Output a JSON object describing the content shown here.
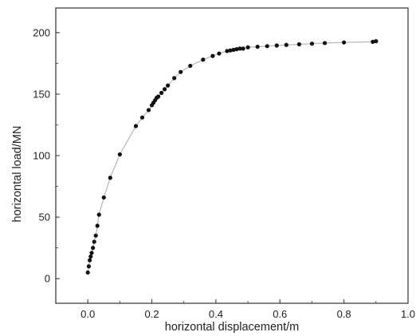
{
  "chart_data": {
    "type": "scatter",
    "title": "",
    "xlabel": "horizontal displacement/m",
    "ylabel": "horizontal load/MN",
    "xlim": [
      -0.1,
      1.0
    ],
    "ylim": [
      -20,
      220
    ],
    "xticks": [
      "0.0",
      "0.2",
      "0.4",
      "0.6",
      "0.8",
      "1.0"
    ],
    "yticks": [
      "0",
      "50",
      "100",
      "150",
      "200"
    ],
    "grid": false,
    "legend": "none",
    "series": [
      {
        "line_color": "#b5b5b5",
        "marker_color": "#111111",
        "points": [
          [
            0.0,
            5
          ],
          [
            0.003,
            10
          ],
          [
            0.006,
            15
          ],
          [
            0.009,
            18
          ],
          [
            0.012,
            21
          ],
          [
            0.016,
            25
          ],
          [
            0.02,
            30
          ],
          [
            0.025,
            35
          ],
          [
            0.03,
            43
          ],
          [
            0.035,
            52
          ],
          [
            0.05,
            66
          ],
          [
            0.07,
            82
          ],
          [
            0.1,
            101
          ],
          [
            0.15,
            124
          ],
          [
            0.17,
            131
          ],
          [
            0.19,
            137
          ],
          [
            0.2,
            141
          ],
          [
            0.205,
            143
          ],
          [
            0.21,
            145
          ],
          [
            0.215,
            147
          ],
          [
            0.22,
            148
          ],
          [
            0.23,
            151
          ],
          [
            0.24,
            154
          ],
          [
            0.25,
            157
          ],
          [
            0.27,
            163
          ],
          [
            0.29,
            168
          ],
          [
            0.32,
            173
          ],
          [
            0.36,
            178
          ],
          [
            0.39,
            181
          ],
          [
            0.41,
            183
          ],
          [
            0.435,
            185
          ],
          [
            0.445,
            185.5
          ],
          [
            0.455,
            186
          ],
          [
            0.465,
            186.5
          ],
          [
            0.475,
            187
          ],
          [
            0.485,
            187
          ],
          [
            0.5,
            188
          ],
          [
            0.53,
            188.5
          ],
          [
            0.56,
            189
          ],
          [
            0.59,
            189.5
          ],
          [
            0.62,
            190
          ],
          [
            0.66,
            190.5
          ],
          [
            0.7,
            191
          ],
          [
            0.74,
            191.5
          ],
          [
            0.8,
            192
          ],
          [
            0.89,
            192.5
          ],
          [
            0.9,
            193
          ]
        ]
      }
    ]
  }
}
